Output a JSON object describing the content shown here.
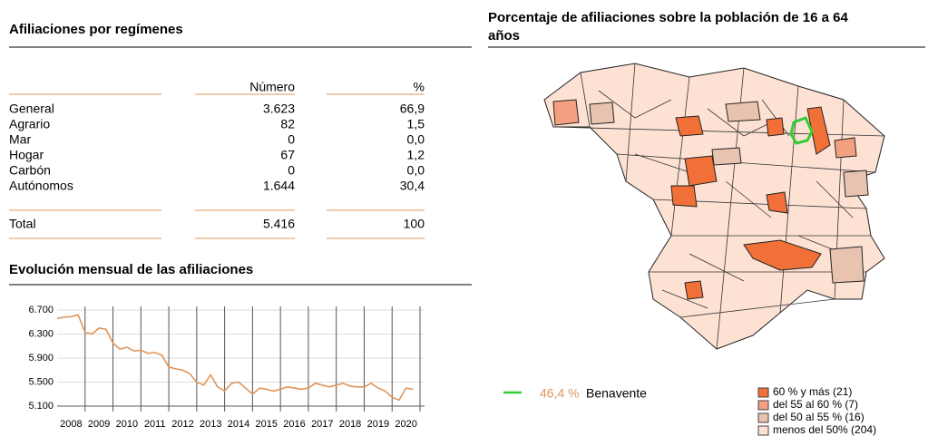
{
  "header": {
    "left_title": "Afiliaciones por regímenes",
    "right_title_line1": "Porcentaje de afiliaciones sobre la población de 16 a 64",
    "right_title_line2": "años"
  },
  "table": {
    "columns": [
      "Número",
      "%"
    ],
    "rows": [
      [
        "General",
        "3.623",
        "66,9"
      ],
      [
        "Agrario",
        "82",
        "1,5"
      ],
      [
        "Mar",
        "0",
        "0,0"
      ],
      [
        "Hogar",
        "67",
        "1,2"
      ],
      [
        "Carbón",
        "0",
        "0,0"
      ],
      [
        "Autónomos",
        "1.644",
        "30,4"
      ]
    ],
    "total": [
      "Total",
      "5.416",
      "100"
    ]
  },
  "chart_data": {
    "type": "line",
    "title": "Evolución mensual de las afiliaciones",
    "color": "#e0955a",
    "x": [
      2008,
      2008.25,
      2008.5,
      2008.75,
      2009,
      2009.25,
      2009.5,
      2009.75,
      2010,
      2010.25,
      2010.5,
      2010.75,
      2011,
      2011.25,
      2011.5,
      2011.75,
      2012,
      2012.25,
      2012.5,
      2012.75,
      2013,
      2013.25,
      2013.5,
      2013.75,
      2014,
      2014.25,
      2014.5,
      2014.75,
      2015,
      2015.25,
      2015.5,
      2015.75,
      2016,
      2016.25,
      2016.5,
      2016.75,
      2017,
      2017.25,
      2017.5,
      2017.75,
      2018,
      2018.25,
      2018.5,
      2018.75,
      2019,
      2019.25,
      2019.5,
      2019.75,
      2020,
      2020.25,
      2020.5,
      2020.75
    ],
    "values": [
      6560,
      6580,
      6590,
      6620,
      6330,
      6300,
      6400,
      6380,
      6150,
      6050,
      6080,
      6020,
      6030,
      5980,
      5990,
      5950,
      5750,
      5720,
      5700,
      5640,
      5500,
      5450,
      5620,
      5420,
      5350,
      5480,
      5500,
      5400,
      5300,
      5400,
      5380,
      5350,
      5380,
      5420,
      5400,
      5380,
      5400,
      5480,
      5450,
      5420,
      5450,
      5480,
      5430,
      5420,
      5420,
      5480,
      5400,
      5350,
      5250,
      5200,
      5400,
      5380
    ],
    "xlim": [
      2008,
      2021
    ],
    "xticks": [
      {
        "value": 2008.5,
        "label": "2008"
      },
      {
        "value": 2009.5,
        "label": "2009"
      },
      {
        "value": 2010.5,
        "label": "2010"
      },
      {
        "value": 2011.5,
        "label": "2011"
      },
      {
        "value": 2012.5,
        "label": "2012"
      },
      {
        "value": 2013.5,
        "label": "2013"
      },
      {
        "value": 2014.5,
        "label": "2014"
      },
      {
        "value": 2015.5,
        "label": "2015"
      },
      {
        "value": 2016.5,
        "label": "2016"
      },
      {
        "value": 2017.5,
        "label": "2017"
      },
      {
        "value": 2018.5,
        "label": "2018"
      },
      {
        "value": 2019.5,
        "label": "2019"
      },
      {
        "value": 2020.5,
        "label": "2020"
      }
    ],
    "xgrid": [
      2009,
      2010,
      2011,
      2012,
      2013,
      2014,
      2015,
      2016,
      2017,
      2018,
      2019,
      2020,
      2021
    ],
    "ylim": [
      5100,
      6700
    ],
    "yticks": [
      {
        "value": 5100,
        "label": "5.100"
      },
      {
        "value": 5500,
        "label": "5.500"
      },
      {
        "value": 5900,
        "label": "5.900"
      },
      {
        "value": 6300,
        "label": "6.300"
      },
      {
        "value": 6700,
        "label": "6.700"
      }
    ]
  },
  "map": {
    "highlight": {
      "value": "46,4 %",
      "name": "Benavente",
      "color": "#33cc33"
    },
    "legend": [
      {
        "label": "60 % y más (21)",
        "color": "#f07038"
      },
      {
        "label": "del 55 al 60 % (7)",
        "color": "#f4a080"
      },
      {
        "label": "del 50 al 55 % (16)",
        "color": "#e8c4b0"
      },
      {
        "label": "menos del 50% (204)",
        "color": "#fde2d4"
      }
    ]
  }
}
